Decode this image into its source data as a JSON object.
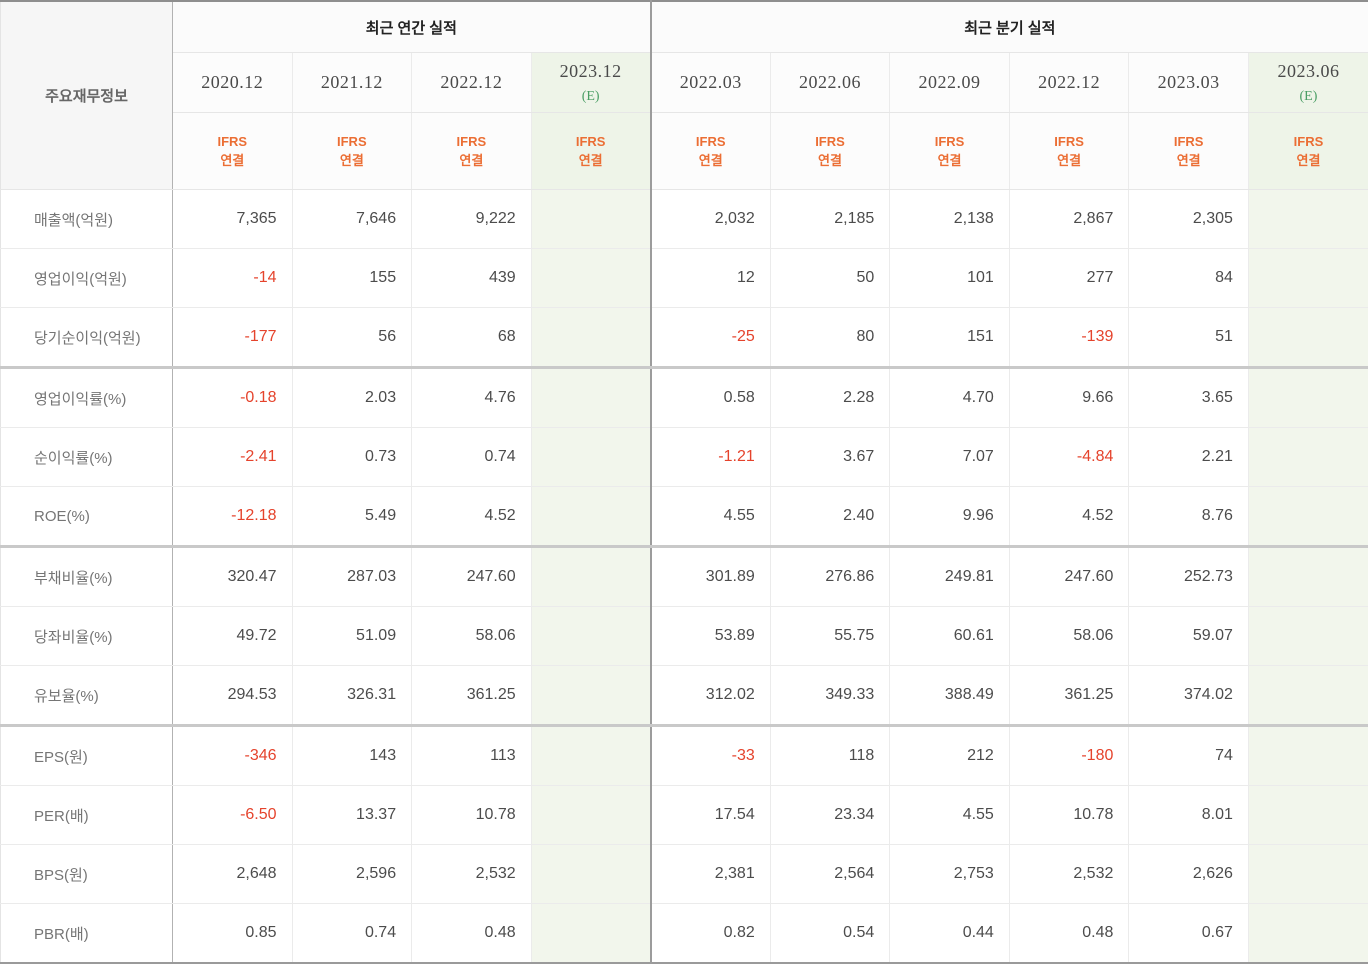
{
  "table": {
    "corner_label": "주요재무정보",
    "group_headers": {
      "annual": "최근 연간 실적",
      "quarterly": "최근 분기 실적"
    },
    "annual_col_count": 4,
    "quarterly_col_count": 6,
    "estimate_mark": "(E)",
    "ifrs_line1": "IFRS",
    "ifrs_line2": "연결",
    "columns": [
      {
        "period": "2020.12",
        "estimate": false,
        "section": "annual"
      },
      {
        "period": "2021.12",
        "estimate": false,
        "section": "annual"
      },
      {
        "period": "2022.12",
        "estimate": false,
        "section": "annual"
      },
      {
        "period": "2023.12",
        "estimate": true,
        "section": "annual"
      },
      {
        "period": "2022.03",
        "estimate": false,
        "section": "quarterly"
      },
      {
        "period": "2022.06",
        "estimate": false,
        "section": "quarterly"
      },
      {
        "period": "2022.09",
        "estimate": false,
        "section": "quarterly"
      },
      {
        "period": "2022.12",
        "estimate": false,
        "section": "quarterly"
      },
      {
        "period": "2023.03",
        "estimate": false,
        "section": "quarterly"
      },
      {
        "period": "2023.06",
        "estimate": true,
        "section": "quarterly"
      }
    ],
    "rows": [
      {
        "label": "매출액(억원)",
        "section_end": false,
        "values": [
          "7,365",
          "7,646",
          "9,222",
          "",
          "2,032",
          "2,185",
          "2,138",
          "2,867",
          "2,305",
          ""
        ]
      },
      {
        "label": "영업이익(억원)",
        "section_end": false,
        "values": [
          "-14",
          "155",
          "439",
          "",
          "12",
          "50",
          "101",
          "277",
          "84",
          ""
        ]
      },
      {
        "label": "당기순이익(억원)",
        "section_end": true,
        "values": [
          "-177",
          "56",
          "68",
          "",
          "-25",
          "80",
          "151",
          "-139",
          "51",
          ""
        ]
      },
      {
        "label": "영업이익률(%)",
        "section_end": false,
        "values": [
          "-0.18",
          "2.03",
          "4.76",
          "",
          "0.58",
          "2.28",
          "4.70",
          "9.66",
          "3.65",
          ""
        ]
      },
      {
        "label": "순이익률(%)",
        "section_end": false,
        "values": [
          "-2.41",
          "0.73",
          "0.74",
          "",
          "-1.21",
          "3.67",
          "7.07",
          "-4.84",
          "2.21",
          ""
        ]
      },
      {
        "label": "ROE(%)",
        "section_end": true,
        "values": [
          "-12.18",
          "5.49",
          "4.52",
          "",
          "4.55",
          "2.40",
          "9.96",
          "4.52",
          "8.76",
          ""
        ]
      },
      {
        "label": "부채비율(%)",
        "section_end": false,
        "values": [
          "320.47",
          "287.03",
          "247.60",
          "",
          "301.89",
          "276.86",
          "249.81",
          "247.60",
          "252.73",
          ""
        ]
      },
      {
        "label": "당좌비율(%)",
        "section_end": false,
        "values": [
          "49.72",
          "51.09",
          "58.06",
          "",
          "53.89",
          "55.75",
          "60.61",
          "58.06",
          "59.07",
          ""
        ]
      },
      {
        "label": "유보율(%)",
        "section_end": true,
        "values": [
          "294.53",
          "326.31",
          "361.25",
          "",
          "312.02",
          "349.33",
          "388.49",
          "361.25",
          "374.02",
          ""
        ]
      },
      {
        "label": "EPS(원)",
        "section_end": false,
        "values": [
          "-346",
          "143",
          "113",
          "",
          "-33",
          "118",
          "212",
          "-180",
          "74",
          ""
        ]
      },
      {
        "label": "PER(배)",
        "section_end": false,
        "values": [
          "-6.50",
          "13.37",
          "10.78",
          "",
          "17.54",
          "23.34",
          "4.55",
          "10.78",
          "8.01",
          ""
        ]
      },
      {
        "label": "BPS(원)",
        "section_end": false,
        "values": [
          "2,648",
          "2,596",
          "2,532",
          "",
          "2,381",
          "2,564",
          "2,753",
          "2,532",
          "2,626",
          ""
        ]
      },
      {
        "label": "PBR(배)",
        "section_end": false,
        "values": [
          "0.85",
          "0.74",
          "0.48",
          "",
          "0.82",
          "0.54",
          "0.44",
          "0.48",
          "0.67",
          ""
        ]
      }
    ]
  },
  "colors": {
    "negative_value": "#e5432c",
    "accounting_standard": "#eb6e34",
    "estimate_text": "#4a9e64",
    "estimate_background": "#f2f6ec",
    "value_text": "#4c4c4c",
    "label_text": "#757575"
  }
}
